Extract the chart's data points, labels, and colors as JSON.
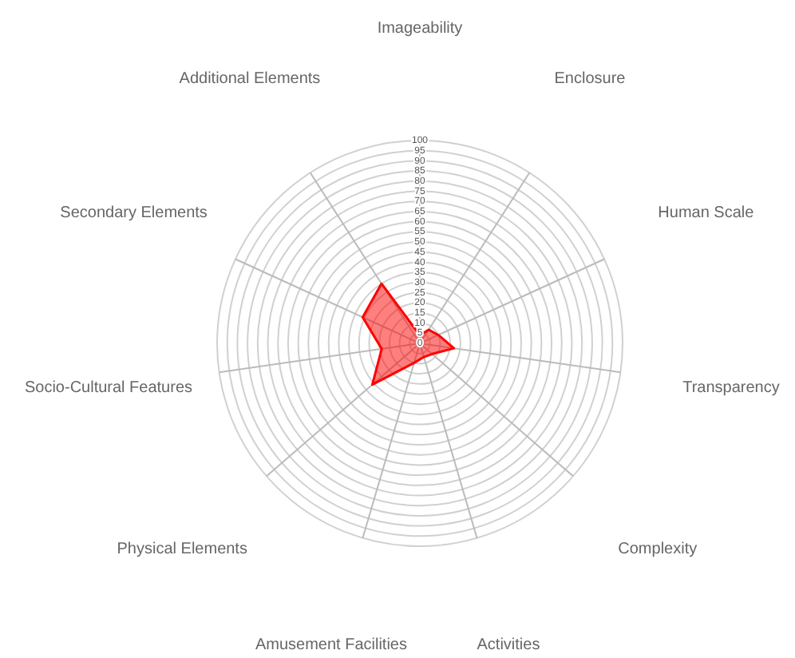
{
  "chart_data": {
    "type": "radar",
    "categories": [
      "Imageability",
      "Enclosure",
      "Human Scale",
      "Transparency",
      "Complexity",
      "Activities",
      "Amusement Facilities",
      "Physical Elements",
      "Socio-Cultural Features",
      "Secondary Elements",
      "Additional Elements"
    ],
    "series": [
      {
        "color": "#ff0000",
        "values": [
          4,
          8,
          10,
          17,
          8,
          7,
          10,
          31,
          19,
          31,
          35
        ]
      }
    ],
    "ylim": [
      0,
      100
    ],
    "yticks": [
      0,
      5,
      10,
      15,
      20,
      25,
      30,
      35,
      40,
      45,
      50,
      55,
      60,
      65,
      70,
      75,
      80,
      85,
      90,
      95,
      100
    ]
  }
}
